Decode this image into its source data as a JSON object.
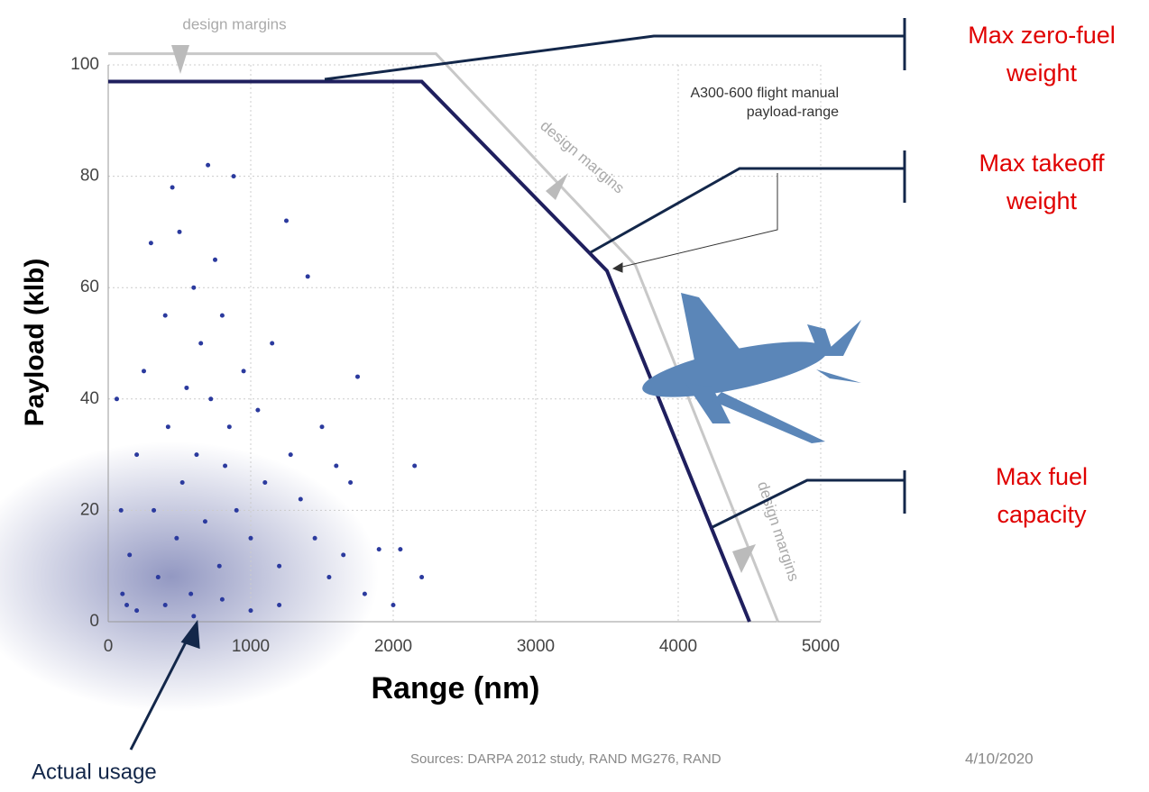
{
  "chart_data": {
    "type": "line",
    "xlabel": "Range (nm)",
    "ylabel": "Payload (klb)",
    "xlim": [
      0,
      5000
    ],
    "ylim": [
      0,
      100
    ],
    "xticks": [
      0,
      1000,
      2000,
      3000,
      4000,
      5000
    ],
    "yticks": [
      0,
      20,
      40,
      60,
      80,
      100
    ],
    "grid": true,
    "series": [
      {
        "name": "A300-600 flight manual payload-range",
        "color": "#1f1f5e",
        "x": [
          0,
          2200,
          3500,
          4500
        ],
        "values": [
          97,
          97,
          63,
          0
        ]
      },
      {
        "name": "design margins",
        "color": "#c8c8c8",
        "x": [
          0,
          2300,
          3700,
          4700
        ],
        "values": [
          102,
          102,
          64,
          0
        ]
      },
      {
        "name": "Actual usage",
        "type": "scatter",
        "color": "#2b3a9e",
        "x": [
          100,
          150,
          200,
          250,
          300,
          320,
          350,
          400,
          420,
          450,
          480,
          500,
          520,
          550,
          580,
          600,
          620,
          650,
          680,
          700,
          720,
          750,
          780,
          800,
          820,
          850,
          880,
          900,
          950,
          1000,
          1050,
          1100,
          1150,
          1200,
          1250,
          1280,
          1350,
          1400,
          1450,
          1500,
          1550,
          1600,
          1650,
          1700,
          1750,
          1800,
          1900,
          2000,
          2050,
          2150,
          2200,
          200,
          400,
          600,
          800,
          1000,
          1200,
          60,
          90,
          130
        ],
        "values": [
          5,
          12,
          30,
          45,
          68,
          20,
          8,
          55,
          35,
          78,
          15,
          70,
          25,
          42,
          5,
          60,
          30,
          50,
          18,
          82,
          40,
          65,
          10,
          55,
          28,
          35,
          80,
          20,
          45,
          15,
          38,
          25,
          50,
          10,
          72,
          30,
          22,
          62,
          15,
          35,
          8,
          28,
          12,
          25,
          44,
          5,
          13,
          3,
          13,
          28,
          8,
          2,
          3,
          1,
          4,
          2,
          3,
          40,
          20,
          3
        ]
      }
    ],
    "annotations": [
      "Max zero-fuel weight",
      "Max takeoff weight",
      "Max fuel capacity"
    ],
    "source": "Sources: DARPA 2012 study, RAND  MG276, RAND",
    "date": "4/10/2020"
  }
}
